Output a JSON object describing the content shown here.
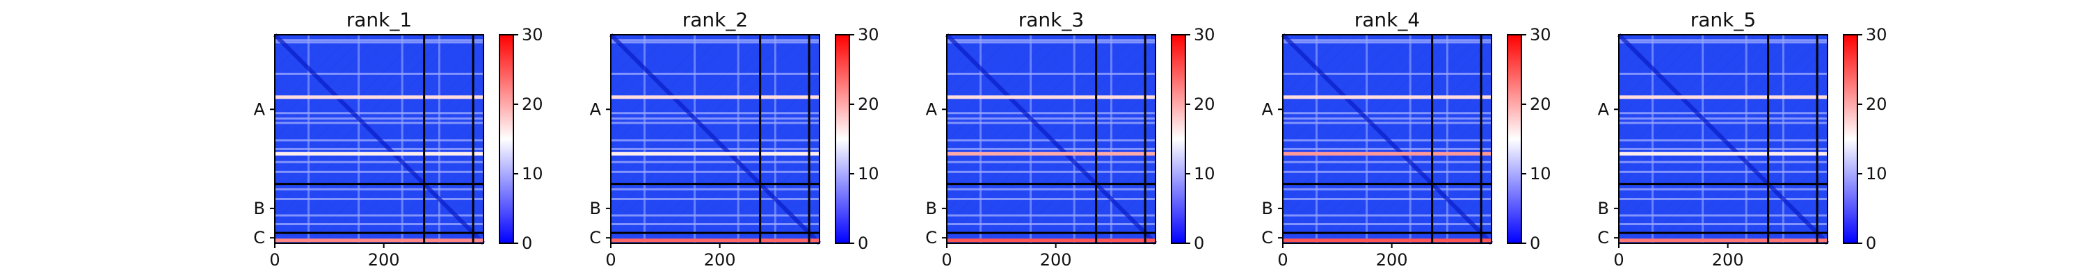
{
  "chart_data": {
    "type": "heatmap",
    "colorbar": {
      "min": 0,
      "max": 30,
      "ticks": [
        "0",
        "10",
        "20",
        "30"
      ],
      "colormap": "bwr",
      "colors": {
        "low": "#0000ff",
        "mid": "#ffffff",
        "high": "#ff0000"
      }
    },
    "x_ticks": [
      "0",
      "200"
    ],
    "x_tick_values": [
      0,
      200
    ],
    "xlim": [
      0,
      383
    ],
    "ylim": [
      383,
      0
    ],
    "chain_labels": [
      "A",
      "B",
      "C"
    ],
    "chain_boundaries": [
      274,
      364
    ],
    "chain_label_centers": [
      137,
      319,
      373
    ],
    "panels": [
      {
        "title": "rank_1",
        "stripe_rows": [
          {
            "pos": 114,
            "val": 17
          },
          {
            "pos": 218,
            "val": 16
          },
          {
            "pos": 377,
            "val": 22
          }
        ]
      },
      {
        "title": "rank_2",
        "stripe_rows": [
          {
            "pos": 114,
            "val": 17
          },
          {
            "pos": 218,
            "val": 16
          },
          {
            "pos": 377,
            "val": 24
          }
        ]
      },
      {
        "title": "rank_3",
        "stripe_rows": [
          {
            "pos": 114,
            "val": 17
          },
          {
            "pos": 218,
            "val": 20
          },
          {
            "pos": 377,
            "val": 25
          }
        ]
      },
      {
        "title": "rank_4",
        "stripe_rows": [
          {
            "pos": 114,
            "val": 17
          },
          {
            "pos": 218,
            "val": 21
          },
          {
            "pos": 377,
            "val": 25
          }
        ]
      },
      {
        "title": "rank_5",
        "stripe_rows": [
          {
            "pos": 114,
            "val": 17
          },
          {
            "pos": 218,
            "val": 16
          },
          {
            "pos": 377,
            "val": 23
          }
        ]
      }
    ]
  }
}
